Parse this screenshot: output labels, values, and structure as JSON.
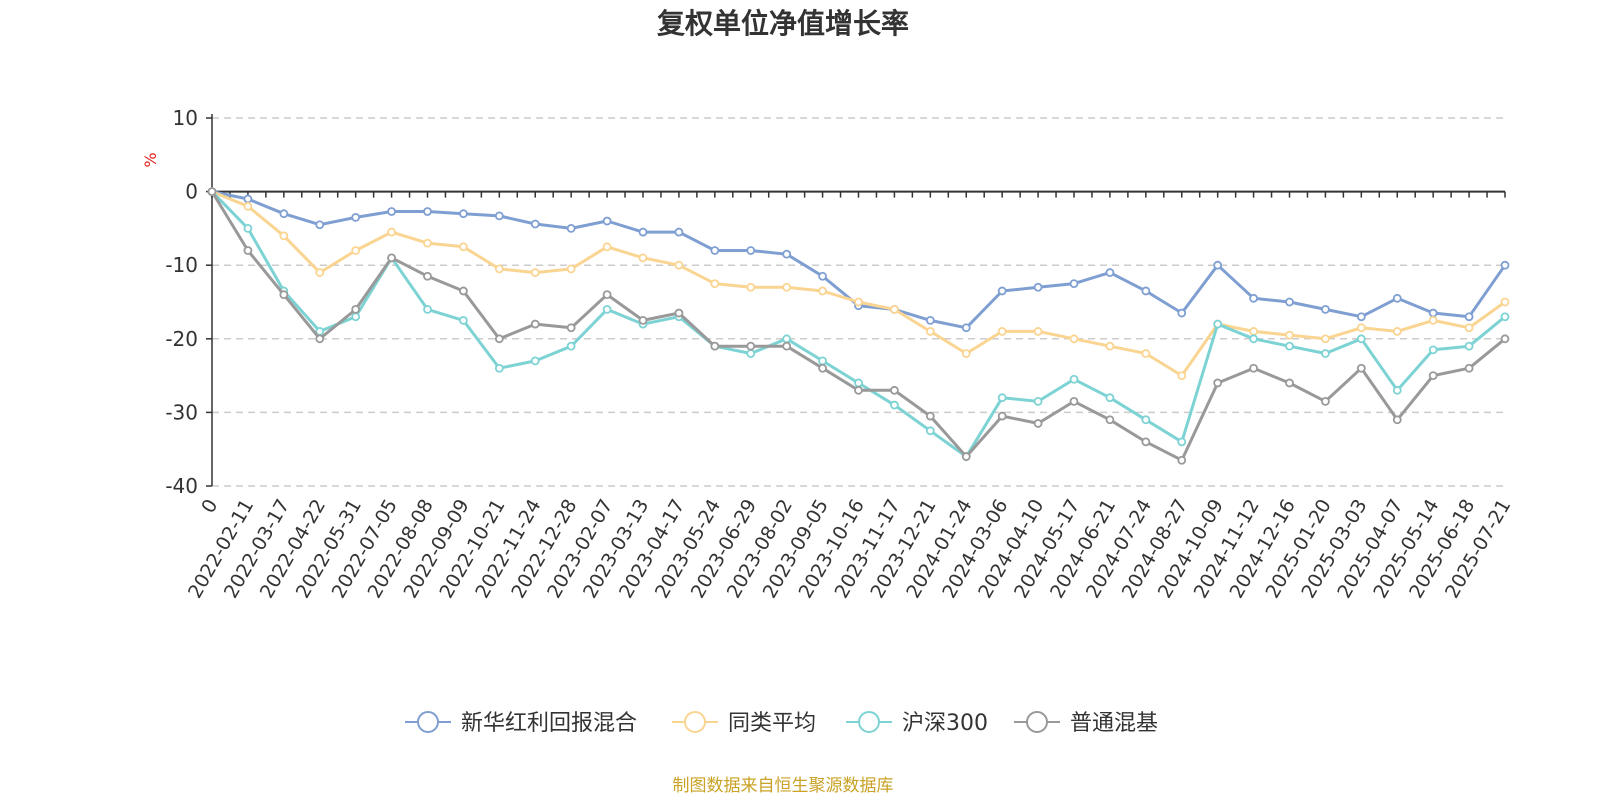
{
  "chart_data": {
    "type": "line",
    "title": "复权单位净值增长率",
    "ylabel": "%",
    "ylim": [
      -40,
      10
    ],
    "yticks": [
      10,
      0,
      -10,
      -20,
      -30,
      -40
    ],
    "grid": true,
    "legend_position": "bottom",
    "x_labels": [
      "0",
      "2022-02-11",
      "2022-03-17",
      "2022-04-22",
      "2022-05-31",
      "2022-07-05",
      "2022-08-08",
      "2022-09-09",
      "2022-10-21",
      "2022-11-24",
      "2022-12-28",
      "2023-02-07",
      "2023-03-13",
      "2023-04-17",
      "2023-05-24",
      "2023-06-29",
      "2023-08-02",
      "2023-09-05",
      "2023-10-16",
      "2023-11-17",
      "2023-12-21",
      "2024-01-24",
      "2024-03-06",
      "2024-04-10",
      "2024-05-17",
      "2024-06-21",
      "2024-07-24",
      "2024-08-27",
      "2024-10-09",
      "2024-11-12",
      "2024-12-16",
      "2025-01-20",
      "2025-03-03",
      "2025-04-07",
      "2025-05-14",
      "2025-06-18",
      "2025-07-21"
    ],
    "series": [
      {
        "name": "新华红利回报混合",
        "color": "#7f9fd2",
        "values": [
          0,
          -1,
          -3,
          -4.5,
          -3.5,
          -2.7,
          -2.7,
          -3,
          -3.3,
          -4.4,
          -5,
          -4,
          -5.5,
          -5.5,
          -8,
          -8,
          -8.5,
          -11.5,
          -15.5,
          -16,
          -17.5,
          -18.5,
          -13.5,
          -13,
          -12.5,
          -11,
          -13.5,
          -16.5,
          -10,
          -14.5,
          -15,
          -16,
          -17,
          -14.5,
          -16.5,
          -17,
          -10
        ]
      },
      {
        "name": "同类平均",
        "color": "#fad491",
        "values": [
          0,
          -2,
          -6,
          -11,
          -8,
          -5.5,
          -7,
          -7.5,
          -10.5,
          -11,
          -10.5,
          -7.5,
          -9,
          -10,
          -12.5,
          -13,
          -13,
          -13.5,
          -15,
          -16,
          -19,
          -22,
          -19,
          -19,
          -20,
          -21,
          -22,
          -25,
          -18,
          -19,
          -19.5,
          -20,
          -18.5,
          -19,
          -17.5,
          -18.5,
          -15
        ]
      },
      {
        "name": "沪深300",
        "color": "#7dd3d4",
        "values": [
          0,
          -5,
          -13.5,
          -19,
          -17,
          -9,
          -16,
          -17.5,
          -24,
          -23,
          -21,
          -16,
          -18,
          -17,
          -21,
          -22,
          -20,
          -23,
          -26,
          -29,
          -32.5,
          -36,
          -28,
          -28.5,
          -25.5,
          -28,
          -31,
          -34,
          -18,
          -20,
          -21,
          -22,
          -20,
          -27,
          -21.5,
          -21,
          -17
        ]
      },
      {
        "name": "普通混基",
        "color": "#999999",
        "values": [
          0,
          -8,
          -14,
          -20,
          -16,
          -9,
          -11.5,
          -13.5,
          -20,
          -18,
          -18.5,
          -14,
          -17.5,
          -16.5,
          -21,
          -21,
          -21,
          -24,
          -27,
          -27,
          -30.5,
          -36,
          -30.5,
          -31.5,
          -28.5,
          -31,
          -34,
          -36.5,
          -26,
          -24,
          -26,
          -28.5,
          -24,
          -31,
          -25,
          -24,
          -20
        ]
      }
    ]
  },
  "source_note": "制图数据来自恒生聚源数据库"
}
